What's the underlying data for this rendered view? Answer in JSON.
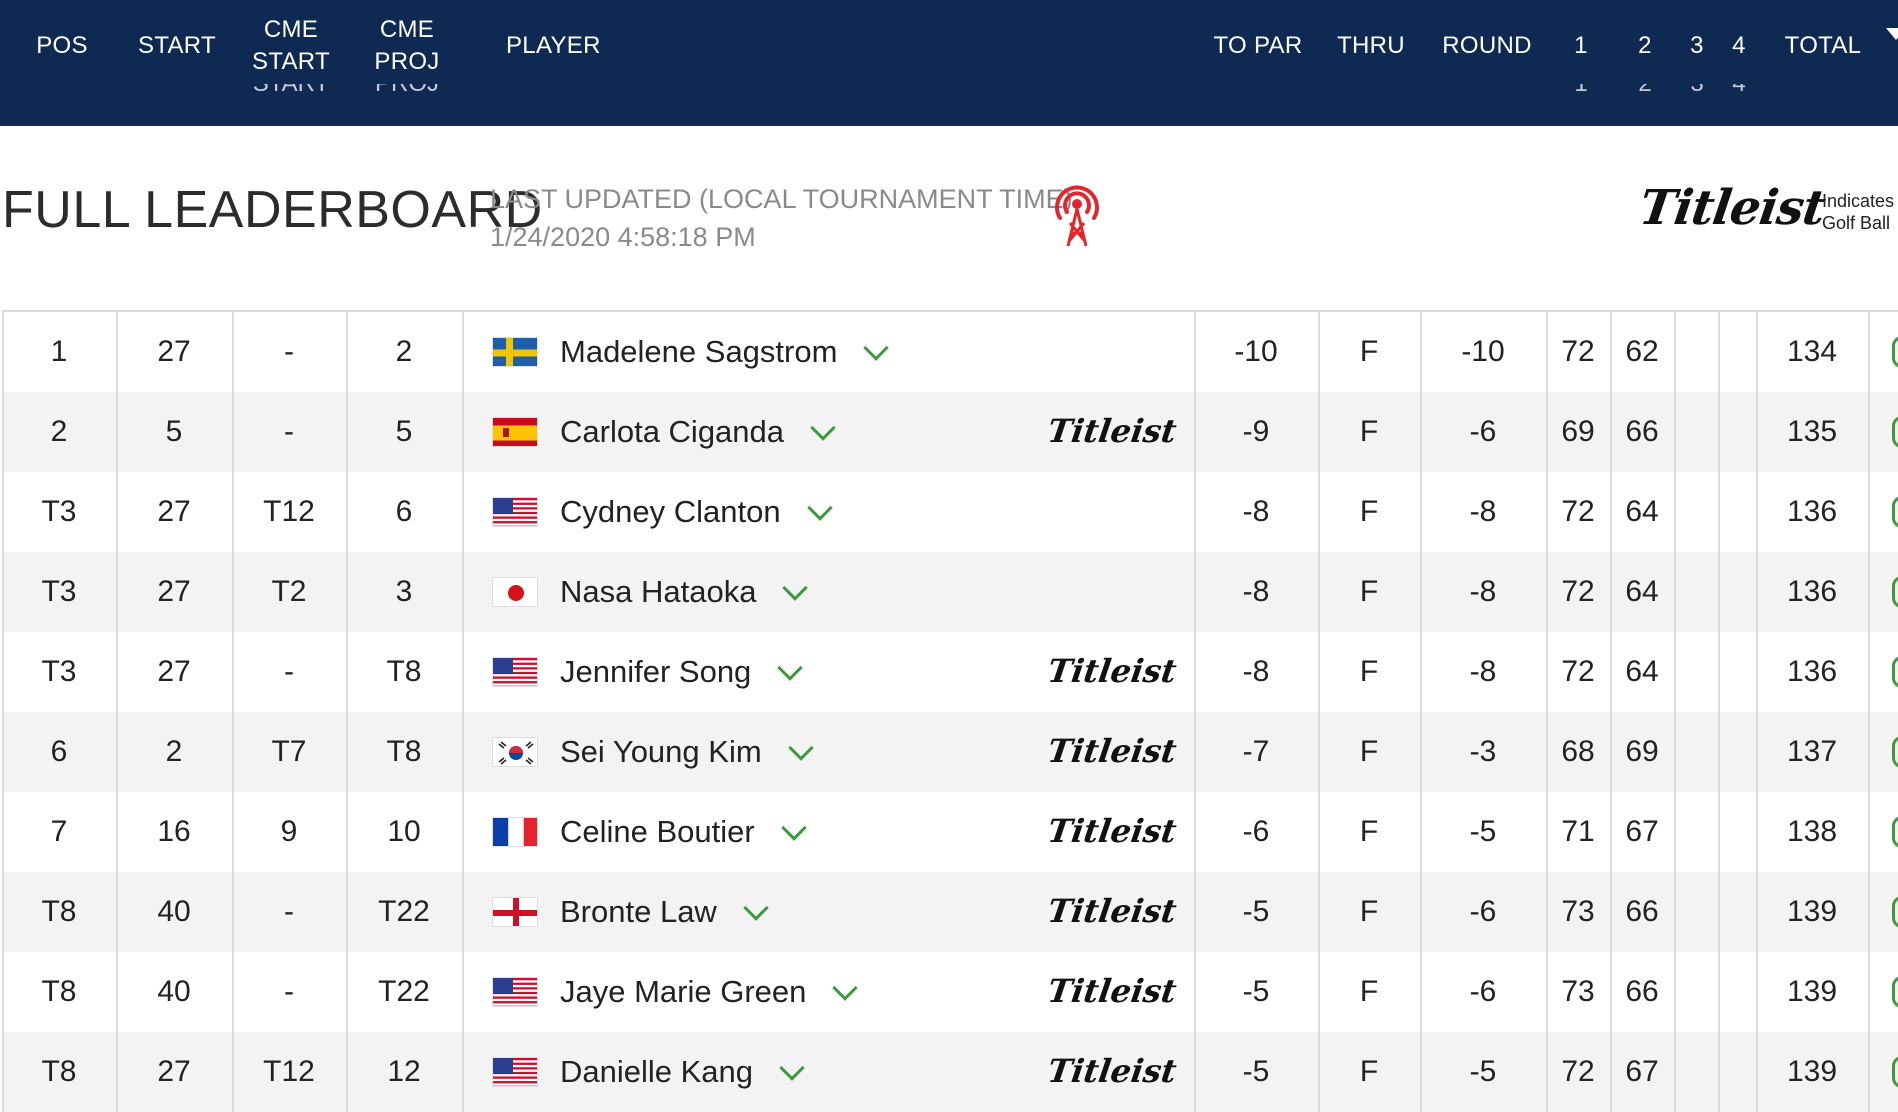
{
  "header": {
    "pos": "POS",
    "start": "START",
    "cme_start": "CME START",
    "cme_proj": "CME PROJ",
    "player": "PLAYER",
    "to_par": "TO PAR",
    "thru": "THRU",
    "round": "ROUND",
    "r1": "1",
    "r2": "2",
    "r3": "3",
    "r4": "4",
    "total": "TOTAL",
    "ghost_cme_start": "START",
    "ghost_cme_proj": "PROJ",
    "ghost_r1": "1",
    "ghost_r2": "2",
    "ghost_r3": "3",
    "ghost_r4": "4"
  },
  "title": "FULL LEADERBOARD",
  "last_updated_label": "LAST UPDATED (LOCAL TOURNAMENT TIME)",
  "last_updated_value": "1/24/2020 4:58:18 PM",
  "brand": {
    "logo_text": "Titleist",
    "legend_line1": "Indicates",
    "legend_line2": "Golf Ball"
  },
  "colors": {
    "header_bg": "#0f2a52",
    "accent_green": "#3b9b3b",
    "live_red": "#e2262b",
    "row_alt": "#f3f3f3"
  },
  "rows": [
    {
      "pos": "1",
      "start": "27",
      "cme_start": "-",
      "cme_proj": "2",
      "flag": "sweden",
      "player": "Madelene Sagstrom",
      "titleist": false,
      "to_par": "-10",
      "thru": "F",
      "round": "-10",
      "r1": "72",
      "r2": "62",
      "r3": "",
      "r4": "",
      "total": "134"
    },
    {
      "pos": "2",
      "start": "5",
      "cme_start": "-",
      "cme_proj": "5",
      "flag": "spain",
      "player": "Carlota Ciganda",
      "titleist": true,
      "to_par": "-9",
      "thru": "F",
      "round": "-6",
      "r1": "69",
      "r2": "66",
      "r3": "",
      "r4": "",
      "total": "135"
    },
    {
      "pos": "T3",
      "start": "27",
      "cme_start": "T12",
      "cme_proj": "6",
      "flag": "usa",
      "player": "Cydney Clanton",
      "titleist": false,
      "to_par": "-8",
      "thru": "F",
      "round": "-8",
      "r1": "72",
      "r2": "64",
      "r3": "",
      "r4": "",
      "total": "136"
    },
    {
      "pos": "T3",
      "start": "27",
      "cme_start": "T2",
      "cme_proj": "3",
      "flag": "japan",
      "player": "Nasa Hataoka",
      "titleist": false,
      "to_par": "-8",
      "thru": "F",
      "round": "-8",
      "r1": "72",
      "r2": "64",
      "r3": "",
      "r4": "",
      "total": "136"
    },
    {
      "pos": "T3",
      "start": "27",
      "cme_start": "-",
      "cme_proj": "T8",
      "flag": "usa",
      "player": "Jennifer Song",
      "titleist": true,
      "to_par": "-8",
      "thru": "F",
      "round": "-8",
      "r1": "72",
      "r2": "64",
      "r3": "",
      "r4": "",
      "total": "136"
    },
    {
      "pos": "6",
      "start": "2",
      "cme_start": "T7",
      "cme_proj": "T8",
      "flag": "south-korea",
      "player": "Sei Young Kim",
      "titleist": true,
      "to_par": "-7",
      "thru": "F",
      "round": "-3",
      "r1": "68",
      "r2": "69",
      "r3": "",
      "r4": "",
      "total": "137"
    },
    {
      "pos": "7",
      "start": "16",
      "cme_start": "9",
      "cme_proj": "10",
      "flag": "france",
      "player": "Celine Boutier",
      "titleist": true,
      "to_par": "-6",
      "thru": "F",
      "round": "-5",
      "r1": "71",
      "r2": "67",
      "r3": "",
      "r4": "",
      "total": "138"
    },
    {
      "pos": "T8",
      "start": "40",
      "cme_start": "-",
      "cme_proj": "T22",
      "flag": "england",
      "player": "Bronte Law",
      "titleist": true,
      "to_par": "-5",
      "thru": "F",
      "round": "-6",
      "r1": "73",
      "r2": "66",
      "r3": "",
      "r4": "",
      "total": "139"
    },
    {
      "pos": "T8",
      "start": "40",
      "cme_start": "-",
      "cme_proj": "T22",
      "flag": "usa",
      "player": "Jaye Marie Green",
      "titleist": true,
      "to_par": "-5",
      "thru": "F",
      "round": "-6",
      "r1": "73",
      "r2": "66",
      "r3": "",
      "r4": "",
      "total": "139"
    },
    {
      "pos": "T8",
      "start": "27",
      "cme_start": "T12",
      "cme_proj": "12",
      "flag": "usa",
      "player": "Danielle Kang",
      "titleist": true,
      "to_par": "-5",
      "thru": "F",
      "round": "-5",
      "r1": "72",
      "r2": "67",
      "r3": "",
      "r4": "",
      "total": "139"
    }
  ]
}
